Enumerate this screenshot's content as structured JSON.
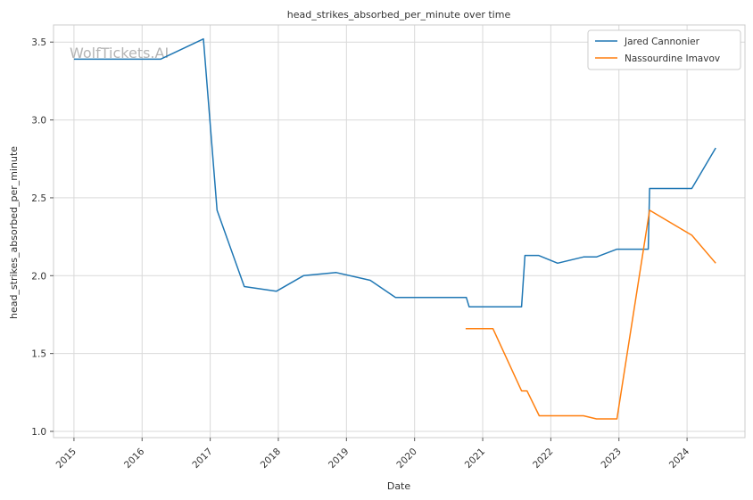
{
  "chart_data": {
    "type": "line",
    "title": "head_strikes_absorbed_per_minute over time",
    "xlabel": "Date",
    "ylabel": "head_strikes_absorbed_per_minute",
    "watermark": "WolfTickets.AI",
    "xlim": [
      2014.7,
      2024.85
    ],
    "ylim": [
      0.96,
      3.61
    ],
    "x_ticks": [
      2015,
      2016,
      2017,
      2018,
      2019,
      2020,
      2021,
      2022,
      2023,
      2024
    ],
    "x_tick_labels": [
      "2015",
      "2016",
      "2017",
      "2018",
      "2019",
      "2020",
      "2021",
      "2022",
      "2023",
      "2024"
    ],
    "y_ticks": [
      1.0,
      1.5,
      2.0,
      2.5,
      3.0,
      3.5
    ],
    "y_tick_labels": [
      "1.0",
      "1.5",
      "2.0",
      "2.5",
      "3.0",
      "3.5"
    ],
    "grid": true,
    "legend_position": "top-right",
    "series": [
      {
        "name": "Jared Cannonier",
        "color": "#1f77b4",
        "points": [
          [
            2015.0,
            3.39
          ],
          [
            2016.27,
            3.39
          ],
          [
            2016.9,
            3.52
          ],
          [
            2017.1,
            2.42
          ],
          [
            2017.5,
            1.93
          ],
          [
            2017.97,
            1.9
          ],
          [
            2018.37,
            2.0
          ],
          [
            2018.85,
            2.02
          ],
          [
            2019.35,
            1.97
          ],
          [
            2019.72,
            1.86
          ],
          [
            2020.76,
            1.86
          ],
          [
            2020.8,
            1.8
          ],
          [
            2021.57,
            1.8
          ],
          [
            2021.62,
            2.13
          ],
          [
            2021.82,
            2.13
          ],
          [
            2022.1,
            2.08
          ],
          [
            2022.48,
            2.12
          ],
          [
            2022.67,
            2.12
          ],
          [
            2022.97,
            2.17
          ],
          [
            2023.43,
            2.17
          ],
          [
            2023.45,
            2.56
          ],
          [
            2024.07,
            2.56
          ],
          [
            2024.42,
            2.82
          ]
        ]
      },
      {
        "name": "Nassourdine Imavov",
        "color": "#ff7f0e",
        "points": [
          [
            2020.75,
            1.66
          ],
          [
            2021.15,
            1.66
          ],
          [
            2021.57,
            1.26
          ],
          [
            2021.65,
            1.26
          ],
          [
            2021.83,
            1.1
          ],
          [
            2022.48,
            1.1
          ],
          [
            2022.67,
            1.08
          ],
          [
            2022.97,
            1.08
          ],
          [
            2023.45,
            2.42
          ],
          [
            2024.07,
            2.26
          ],
          [
            2024.42,
            2.08
          ]
        ]
      }
    ]
  }
}
